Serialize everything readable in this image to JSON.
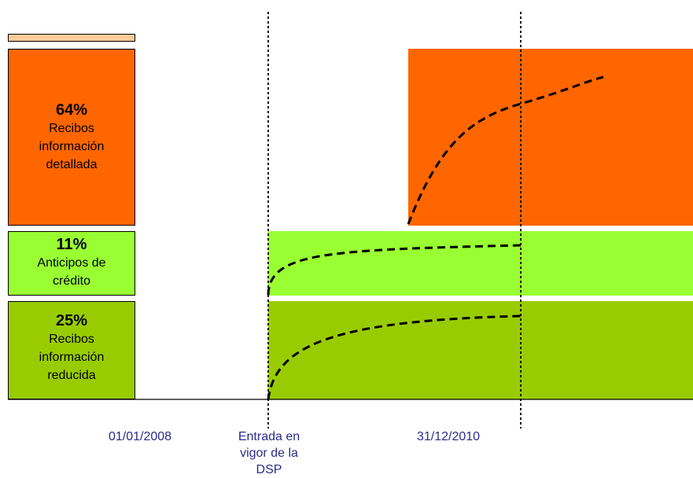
{
  "legend": {
    "detallada": {
      "pct": "64%",
      "label_lines": [
        "Recibos",
        "información",
        "detallada"
      ],
      "color": "#ff6600"
    },
    "anticipos": {
      "pct": "11%",
      "label_lines": [
        "Anticipos de",
        "crédito"
      ],
      "color": "#99ff33"
    },
    "reducida": {
      "pct": "25%",
      "label_lines": [
        "Recibos",
        "información",
        "reducida"
      ],
      "color": "#99cc00"
    },
    "top_strip_color": "#ffcc99"
  },
  "timeline": {
    "start_date": "01/01/2008",
    "dsp_lines": [
      "Entrada en",
      "vigor de la",
      "DSP"
    ],
    "end_date": "31/12/2010"
  }
}
